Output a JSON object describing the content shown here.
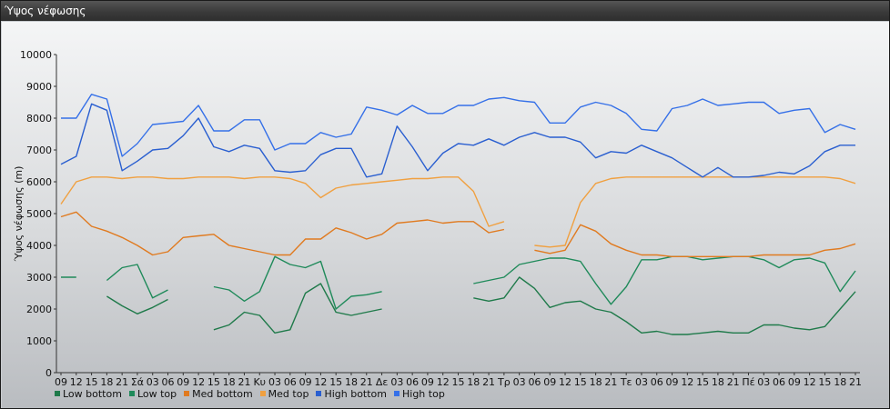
{
  "window": {
    "title": "Ύψος νέφωσης"
  },
  "chart_data": {
    "type": "line",
    "title": "",
    "xlabel": "",
    "ylabel": "Ύψος νέφωσης (m)",
    "ylim": [
      0,
      10000
    ],
    "yticks": [
      0,
      1000,
      2000,
      3000,
      4000,
      5000,
      6000,
      7000,
      8000,
      9000,
      10000
    ],
    "grid": "none",
    "legend_position": "bottom-left",
    "categories": [
      "09",
      "12",
      "15",
      "18",
      "21",
      "Σά",
      "03",
      "06",
      "09",
      "12",
      "15",
      "18",
      "21",
      "Κυ",
      "03",
      "06",
      "09",
      "12",
      "15",
      "18",
      "21",
      "Δε",
      "03",
      "06",
      "09",
      "12",
      "15",
      "18",
      "21",
      "Τρ",
      "03",
      "06",
      "09",
      "12",
      "15",
      "18",
      "21",
      "Τε",
      "03",
      "06",
      "09",
      "12",
      "15",
      "18",
      "21",
      "Πέ",
      "03",
      "06",
      "09",
      "12",
      "15",
      "18",
      "21"
    ],
    "series": [
      {
        "name": "Low bottom",
        "color": "#1f7a4a",
        "values": [
          null,
          null,
          null,
          2400,
          2100,
          1850,
          2050,
          2300,
          null,
          null,
          1350,
          1500,
          1900,
          1800,
          1250,
          1350,
          2500,
          2800,
          1900,
          1800,
          1900,
          2000,
          null,
          null,
          null,
          null,
          null,
          2350,
          2250,
          2350,
          3000,
          2650,
          2050,
          2200,
          2250,
          2000,
          1900,
          1600,
          1250,
          1300,
          1200,
          1200,
          1250,
          1300,
          1250,
          1250,
          1500,
          1500,
          1400,
          1350,
          1450,
          2000,
          2550
        ]
      },
      {
        "name": "Low top",
        "color": "#1f8a5a",
        "values": [
          3000,
          3000,
          null,
          2900,
          3300,
          3400,
          2350,
          2600,
          null,
          null,
          2700,
          2600,
          2250,
          2550,
          3650,
          3400,
          3300,
          3500,
          2000,
          2400,
          2450,
          2550,
          null,
          null,
          null,
          null,
          null,
          2800,
          2900,
          3000,
          3400,
          3500,
          3600,
          3600,
          3500,
          2800,
          2150,
          2700,
          3550,
          3550,
          3650,
          3650,
          3550,
          3600,
          3650,
          3650,
          3550,
          3300,
          3550,
          3600,
          3450,
          2550,
          3200
        ]
      },
      {
        "name": "Med bottom",
        "color": "#e07a1f",
        "values": [
          4900,
          5050,
          4600,
          4450,
          4250,
          4000,
          3700,
          3800,
          4250,
          4300,
          4350,
          4000,
          3900,
          3800,
          3700,
          3700,
          4200,
          4200,
          4550,
          4400,
          4200,
          4350,
          4700,
          4750,
          4800,
          4700,
          4750,
          4750,
          4400,
          4500,
          null,
          3850,
          3750,
          3850,
          4650,
          4450,
          4050,
          3850,
          3700,
          3700,
          3650,
          3650,
          3650,
          3650,
          3650,
          3650,
          3700,
          3700,
          3700,
          3700,
          3850,
          3900,
          4050
        ]
      },
      {
        "name": "Med top",
        "color": "#f0a040",
        "values": [
          5300,
          6000,
          6150,
          6150,
          6100,
          6150,
          6150,
          6100,
          6100,
          6150,
          6150,
          6150,
          6100,
          6150,
          6150,
          6100,
          5950,
          5500,
          5800,
          5900,
          5950,
          6000,
          6050,
          6100,
          6100,
          6150,
          6150,
          5700,
          4600,
          4750,
          null,
          4000,
          3950,
          4000,
          5350,
          5950,
          6100,
          6150,
          6150,
          6150,
          6150,
          6150,
          6150,
          6150,
          6150,
          6150,
          6150,
          6150,
          6150,
          6150,
          6150,
          6100,
          5950
        ]
      },
      {
        "name": "High bottom",
        "color": "#2a5fd0",
        "values": [
          6550,
          6800,
          8450,
          8250,
          6350,
          6650,
          7000,
          7050,
          7450,
          8000,
          7100,
          6950,
          7150,
          7050,
          6350,
          6300,
          6350,
          6850,
          7050,
          7050,
          6150,
          6250,
          7750,
          7100,
          6350,
          6900,
          7200,
          7150,
          7350,
          7150,
          7400,
          7550,
          7400,
          7400,
          7250,
          6750,
          6950,
          6900,
          7150,
          6950,
          6750,
          6450,
          6150,
          6450,
          6150,
          6150,
          6200,
          6300,
          6250,
          6500,
          6950,
          7150,
          7150
        ]
      },
      {
        "name": "High top",
        "color": "#3570e8",
        "values": [
          8000,
          8000,
          8750,
          8600,
          6800,
          7200,
          7800,
          7850,
          7900,
          8400,
          7600,
          7600,
          7950,
          7950,
          7000,
          7200,
          7200,
          7550,
          7400,
          7500,
          8350,
          8250,
          8100,
          8400,
          8150,
          8150,
          8400,
          8400,
          8600,
          8650,
          8550,
          8500,
          7850,
          7850,
          8350,
          8500,
          8400,
          8150,
          7650,
          7600,
          8300,
          8400,
          8600,
          8400,
          8450,
          8500,
          8500,
          8150,
          8250,
          8300,
          7550,
          7800,
          7650
        ]
      }
    ]
  }
}
